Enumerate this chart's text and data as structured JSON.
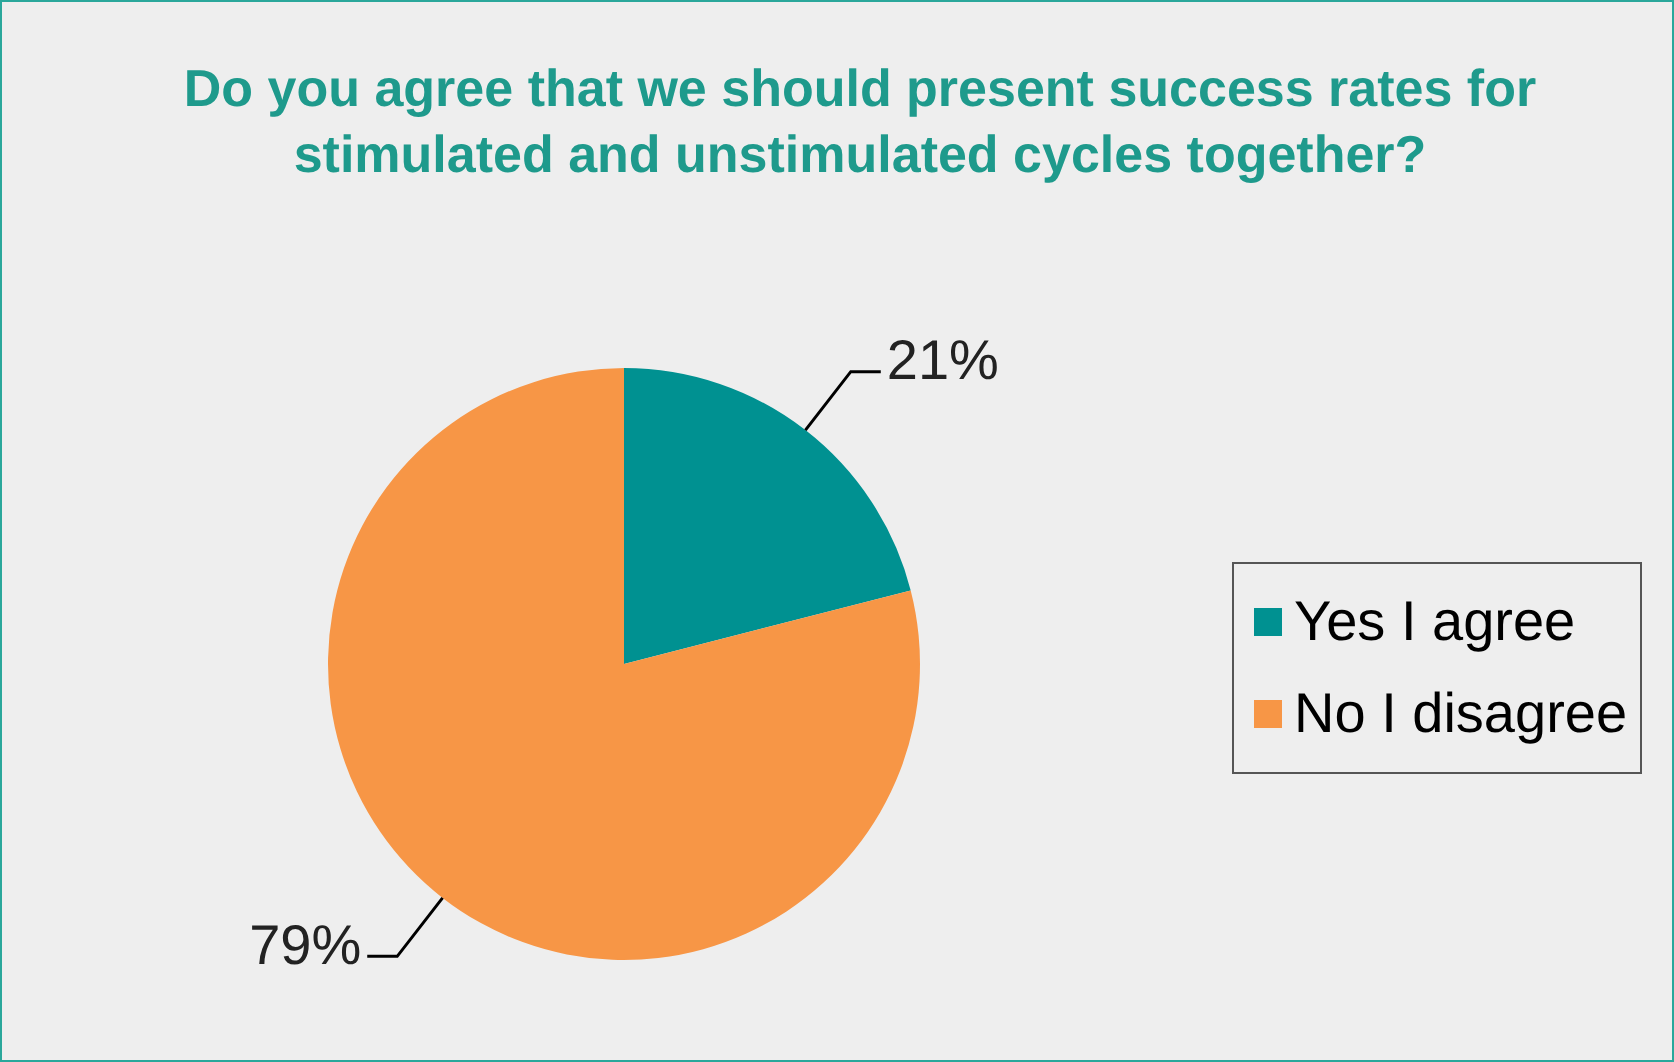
{
  "chart_data": {
    "type": "pie",
    "title": "Do you agree that we should present success rates for stimulated and unstimulated cycles together?",
    "categories": [
      "Yes I agree",
      "No I disagree"
    ],
    "values": [
      21,
      79
    ],
    "colors": [
      "#009191",
      "#f79646"
    ],
    "value_labels": [
      "21%",
      "79%"
    ],
    "legend": "right"
  }
}
